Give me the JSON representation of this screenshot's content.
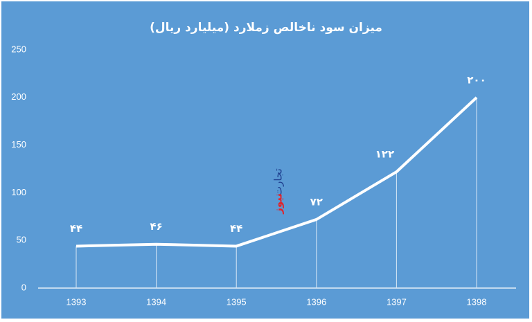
{
  "chart_data": {
    "type": "line",
    "title": "میزان سود ناخالص زملارد  (میلیارد ریال)",
    "categories": [
      "1393",
      "1394",
      "1395",
      "1396",
      "1397",
      "1398"
    ],
    "values": [
      44,
      46,
      44,
      72,
      122,
      200
    ],
    "value_labels": [
      "۴۴",
      "۴۶",
      "۴۴",
      "۷۲",
      "۱۲۲",
      "۲۰۰"
    ],
    "color": "#ffffff",
    "ylim": [
      0,
      250
    ],
    "yticks": [
      0,
      50,
      100,
      150,
      200,
      250
    ],
    "watermark": [
      "تجارت",
      "نیوز"
    ]
  }
}
